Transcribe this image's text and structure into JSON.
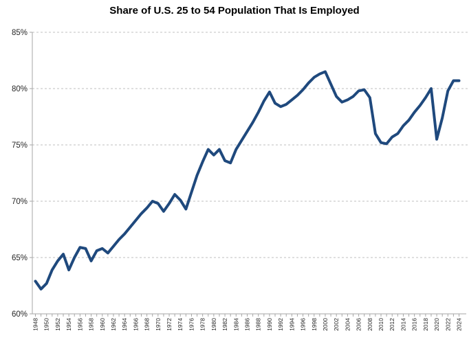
{
  "chart_data": {
    "type": "line",
    "title": "Share of U.S. 25 to 54 Population That Is Employed",
    "xlabel": "",
    "ylabel": "",
    "ylim": [
      60,
      85
    ],
    "ytick_values": [
      60,
      65,
      70,
      75,
      80,
      85
    ],
    "ytick_labels": [
      "60%",
      "65%",
      "70%",
      "75%",
      "80%",
      "85%"
    ],
    "xtick_years": [
      1948,
      1950,
      1952,
      1954,
      1956,
      1958,
      1960,
      1962,
      1964,
      1966,
      1968,
      1970,
      1972,
      1974,
      1976,
      1978,
      1980,
      1982,
      1984,
      1986,
      1988,
      1990,
      1992,
      1994,
      1996,
      1998,
      2000,
      2002,
      2004,
      2006,
      2008,
      2010,
      2012,
      2014,
      2016,
      2018,
      2020,
      2022,
      2024
    ],
    "grid": "horizontal dashed",
    "legend_position": "none",
    "line_color": "#1F497D",
    "gridline_color": "#BFBFBF",
    "axis_color": "#A6A6A6",
    "label_color": "#262626",
    "categories": [
      1948,
      1949,
      1950,
      1951,
      1952,
      1953,
      1954,
      1955,
      1956,
      1957,
      1958,
      1959,
      1960,
      1961,
      1962,
      1963,
      1964,
      1965,
      1966,
      1967,
      1968,
      1969,
      1970,
      1971,
      1972,
      1973,
      1974,
      1975,
      1976,
      1977,
      1978,
      1979,
      1980,
      1981,
      1982,
      1983,
      1984,
      1985,
      1986,
      1987,
      1988,
      1989,
      1990,
      1991,
      1992,
      1993,
      1994,
      1995,
      1996,
      1997,
      1998,
      1999,
      2000,
      2001,
      2002,
      2003,
      2004,
      2005,
      2006,
      2007,
      2008,
      2009,
      2010,
      2011,
      2012,
      2013,
      2014,
      2015,
      2016,
      2017,
      2018,
      2019,
      2020,
      2021,
      2022,
      2023,
      2024
    ],
    "series": [
      {
        "name": "Share of U.S. 25 to 54 population that is employed (%)",
        "values": [
          62.9,
          62.2,
          62.7,
          63.9,
          64.7,
          65.3,
          63.9,
          65.0,
          65.9,
          65.8,
          64.7,
          65.6,
          65.8,
          65.4,
          66.0,
          66.6,
          67.1,
          67.7,
          68.3,
          68.9,
          69.4,
          70.0,
          69.8,
          69.1,
          69.8,
          70.6,
          70.1,
          69.3,
          70.8,
          72.3,
          73.5,
          74.6,
          74.1,
          74.6,
          73.6,
          73.4,
          74.6,
          75.4,
          76.2,
          77.0,
          77.9,
          78.9,
          79.7,
          78.7,
          78.4,
          78.6,
          79.0,
          79.4,
          79.9,
          80.5,
          81.0,
          81.3,
          81.5,
          80.4,
          79.3,
          78.8,
          79.0,
          79.3,
          79.8,
          79.9,
          79.2,
          76.0,
          75.2,
          75.1,
          75.7,
          76.0,
          76.7,
          77.2,
          77.9,
          78.5,
          79.2,
          80.0,
          75.5,
          77.4,
          79.8,
          80.7,
          80.7
        ]
      }
    ]
  }
}
